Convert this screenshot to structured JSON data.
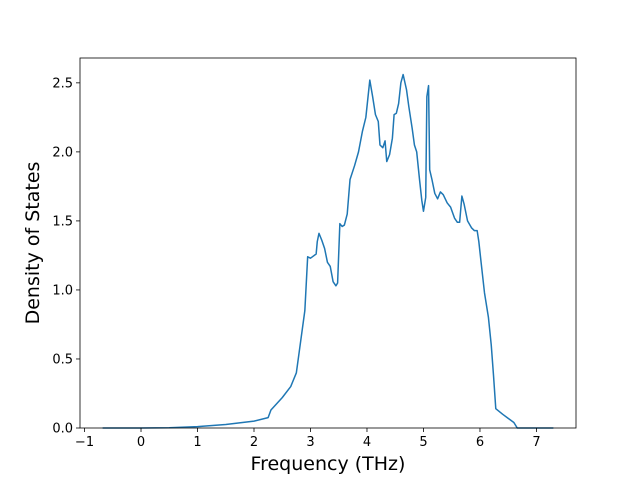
{
  "chart_data": {
    "type": "line",
    "xlabel": "Frequency (THz)",
    "ylabel": "Density of States",
    "color": "#1f77b4",
    "x": [
      -0.68,
      0,
      0.5,
      1,
      1.5,
      2,
      2.25,
      2.3,
      2.5,
      2.65,
      2.75,
      2.8,
      2.9,
      2.95,
      3.0,
      3.1,
      3.12,
      3.15,
      3.2,
      3.25,
      3.3,
      3.35,
      3.4,
      3.45,
      3.48,
      3.52,
      3.56,
      3.6,
      3.65,
      3.7,
      3.78,
      3.85,
      3.92,
      3.98,
      4.05,
      4.1,
      4.15,
      4.2,
      4.23,
      4.28,
      4.32,
      4.35,
      4.4,
      4.45,
      4.48,
      4.52,
      4.56,
      4.6,
      4.64,
      4.7,
      4.74,
      4.8,
      4.84,
      4.88,
      4.93,
      4.97,
      5.0,
      5.04,
      5.06,
      5.09,
      5.11,
      5.15,
      5.2,
      5.25,
      5.3,
      5.35,
      5.42,
      5.48,
      5.55,
      5.6,
      5.64,
      5.68,
      5.72,
      5.78,
      5.85,
      5.9,
      5.95,
      5.98,
      6.02,
      6.08,
      6.15,
      6.2,
      6.24,
      6.28,
      6.4,
      6.5,
      6.6,
      6.66,
      7.3
    ],
    "values": [
      0,
      0,
      0.002,
      0.01,
      0.025,
      0.05,
      0.075,
      0.13,
      0.22,
      0.3,
      0.4,
      0.55,
      0.85,
      1.24,
      1.23,
      1.26,
      1.35,
      1.41,
      1.36,
      1.3,
      1.2,
      1.17,
      1.06,
      1.03,
      1.05,
      1.48,
      1.46,
      1.47,
      1.55,
      1.8,
      1.9,
      2.0,
      2.15,
      2.25,
      2.52,
      2.4,
      2.27,
      2.22,
      2.05,
      2.03,
      2.08,
      1.93,
      1.98,
      2.1,
      2.27,
      2.28,
      2.35,
      2.5,
      2.56,
      2.45,
      2.33,
      2.17,
      2.05,
      2.0,
      1.8,
      1.65,
      1.57,
      1.67,
      2.4,
      2.48,
      1.87,
      1.8,
      1.7,
      1.66,
      1.71,
      1.69,
      1.63,
      1.6,
      1.52,
      1.49,
      1.49,
      1.68,
      1.62,
      1.5,
      1.45,
      1.43,
      1.43,
      1.35,
      1.2,
      0.98,
      0.8,
      0.6,
      0.38,
      0.14,
      0.1,
      0.07,
      0.04,
      0,
      0
    ],
    "xlim": [
      -1.08,
      7.7
    ],
    "ylim": [
      0,
      2.68
    ],
    "xticks": [
      {
        "value": -1,
        "label": "−1"
      },
      0,
      1,
      2,
      3,
      4,
      5,
      6,
      7
    ],
    "yticks": [
      {
        "value": 0,
        "label": "0.0"
      },
      {
        "value": 0.5,
        "label": "0.5"
      },
      {
        "value": 1,
        "label": "1.0"
      },
      {
        "value": 1.5,
        "label": "1.5"
      },
      {
        "value": 2,
        "label": "2.0"
      },
      {
        "value": 2.5,
        "label": "2.5"
      }
    ]
  }
}
